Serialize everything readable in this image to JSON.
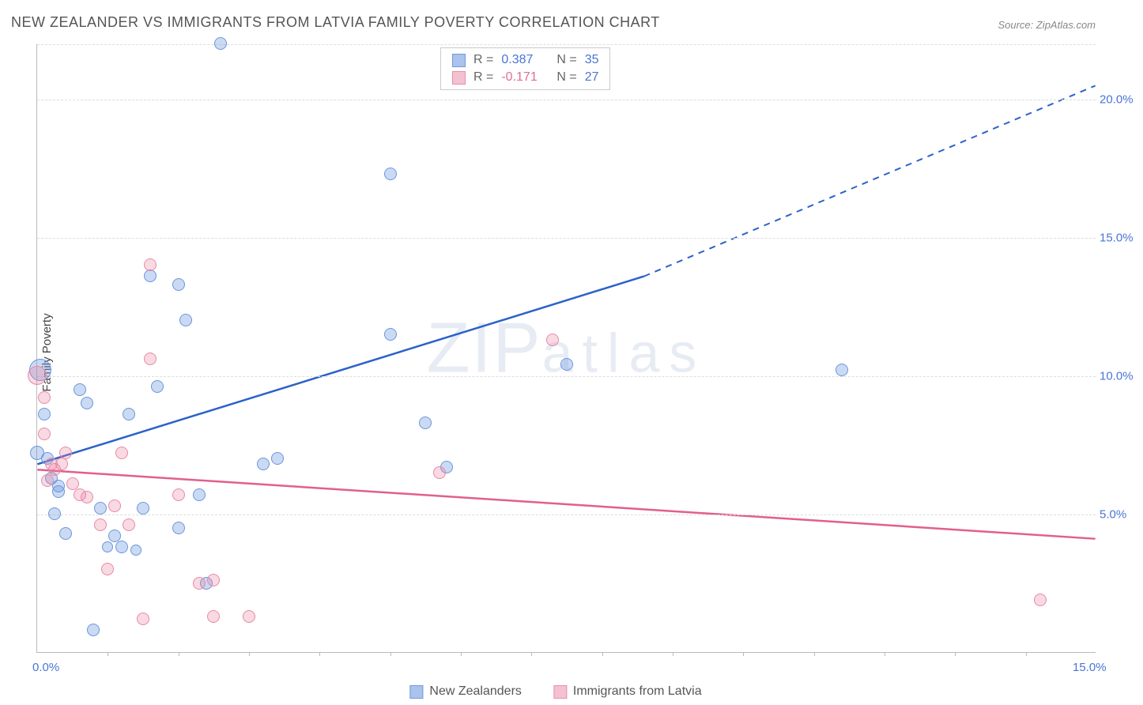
{
  "title": "NEW ZEALANDER VS IMMIGRANTS FROM LATVIA FAMILY POVERTY CORRELATION CHART",
  "source": "Source: ZipAtlas.com",
  "ylabel": "Family Poverty",
  "watermark_zip": "ZIP",
  "watermark_atlas": "atlas",
  "plot": {
    "xlim": [
      0,
      15
    ],
    "ylim": [
      0,
      22
    ],
    "x_ticks": [
      0,
      5,
      15
    ],
    "x_tick_labels": [
      "0.0%",
      "",
      "15.0%"
    ],
    "x_minor_ticks": [
      1,
      2,
      3,
      4,
      5,
      6,
      7,
      8,
      9,
      10,
      11,
      12,
      13,
      14
    ],
    "y_gridlines": [
      5,
      10,
      15,
      20,
      22
    ],
    "y_tick_labels": {
      "5": "5.0%",
      "10": "10.0%",
      "15": "15.0%",
      "20": "20.0%"
    },
    "grid_color": "#dddddd",
    "axis_color": "#bbbbbb",
    "tick_label_color": "#4a74d8"
  },
  "series": [
    {
      "name": "New Zealanders",
      "color_fill": "rgba(105,150,222,0.35)",
      "color_stroke": "#6996de",
      "swatch_fill": "#aac3ec",
      "swatch_border": "#6f99db",
      "R": "0.387",
      "R_color": "#4a74d8",
      "N": "35",
      "trend": {
        "x1": 0,
        "y1": 6.8,
        "x2": 8.6,
        "y2": 13.6,
        "x2_ext": 15,
        "y2_ext": 20.5,
        "color": "#2c62c9",
        "dash_from_x": 8.6
      },
      "points": [
        {
          "x": 0.05,
          "y": 10.2,
          "r": 14
        },
        {
          "x": 0.0,
          "y": 7.2,
          "r": 9
        },
        {
          "x": 0.1,
          "y": 8.6,
          "r": 8
        },
        {
          "x": 0.6,
          "y": 9.5,
          "r": 8
        },
        {
          "x": 0.15,
          "y": 7.0,
          "r": 8
        },
        {
          "x": 0.2,
          "y": 6.3,
          "r": 8
        },
        {
          "x": 0.3,
          "y": 5.8,
          "r": 8
        },
        {
          "x": 0.25,
          "y": 5.0,
          "r": 8
        },
        {
          "x": 0.4,
          "y": 4.3,
          "r": 8
        },
        {
          "x": 0.7,
          "y": 9.0,
          "r": 8
        },
        {
          "x": 0.9,
          "y": 5.2,
          "r": 8
        },
        {
          "x": 1.1,
          "y": 4.2,
          "r": 8
        },
        {
          "x": 1.2,
          "y": 3.8,
          "r": 8
        },
        {
          "x": 1.5,
          "y": 5.2,
          "r": 8
        },
        {
          "x": 1.3,
          "y": 8.6,
          "r": 8
        },
        {
          "x": 1.7,
          "y": 9.6,
          "r": 8
        },
        {
          "x": 1.6,
          "y": 13.6,
          "r": 8
        },
        {
          "x": 2.0,
          "y": 13.3,
          "r": 8
        },
        {
          "x": 2.1,
          "y": 12.0,
          "r": 8
        },
        {
          "x": 2.6,
          "y": 22.0,
          "r": 8
        },
        {
          "x": 1.0,
          "y": 3.8,
          "r": 7
        },
        {
          "x": 1.4,
          "y": 3.7,
          "r": 7
        },
        {
          "x": 2.3,
          "y": 5.7,
          "r": 8
        },
        {
          "x": 2.0,
          "y": 4.5,
          "r": 8
        },
        {
          "x": 2.4,
          "y": 2.5,
          "r": 8
        },
        {
          "x": 3.2,
          "y": 6.8,
          "r": 8
        },
        {
          "x": 3.4,
          "y": 7.0,
          "r": 8
        },
        {
          "x": 5.0,
          "y": 17.3,
          "r": 8
        },
        {
          "x": 5.0,
          "y": 11.5,
          "r": 8
        },
        {
          "x": 5.5,
          "y": 8.3,
          "r": 8
        },
        {
          "x": 5.8,
          "y": 6.7,
          "r": 8
        },
        {
          "x": 7.5,
          "y": 10.4,
          "r": 8
        },
        {
          "x": 0.8,
          "y": 0.8,
          "r": 8
        },
        {
          "x": 0.3,
          "y": 6.0,
          "r": 8
        },
        {
          "x": 11.4,
          "y": 10.2,
          "r": 8
        }
      ]
    },
    {
      "name": "Immigrants from Latvia",
      "color_fill": "rgba(235,130,160,0.30)",
      "color_stroke": "#e78aa8",
      "swatch_fill": "#f4c1d0",
      "swatch_border": "#e88fae",
      "R": "-0.171",
      "R_color": "#df6e95",
      "N": "27",
      "trend": {
        "x1": 0,
        "y1": 6.6,
        "x2": 15,
        "y2": 4.1,
        "color": "#e25f8c"
      },
      "points": [
        {
          "x": 0.0,
          "y": 10.0,
          "r": 12
        },
        {
          "x": 0.1,
          "y": 9.2,
          "r": 8
        },
        {
          "x": 0.1,
          "y": 7.9,
          "r": 8
        },
        {
          "x": 0.2,
          "y": 6.8,
          "r": 8
        },
        {
          "x": 0.25,
          "y": 6.6,
          "r": 8
        },
        {
          "x": 0.35,
          "y": 6.8,
          "r": 8
        },
        {
          "x": 0.5,
          "y": 6.1,
          "r": 8
        },
        {
          "x": 0.6,
          "y": 5.7,
          "r": 8
        },
        {
          "x": 0.7,
          "y": 5.6,
          "r": 8
        },
        {
          "x": 0.9,
          "y": 4.6,
          "r": 8
        },
        {
          "x": 1.0,
          "y": 3.0,
          "r": 8
        },
        {
          "x": 1.1,
          "y": 5.3,
          "r": 8
        },
        {
          "x": 1.3,
          "y": 4.6,
          "r": 8
        },
        {
          "x": 1.6,
          "y": 10.6,
          "r": 8
        },
        {
          "x": 1.6,
          "y": 14.0,
          "r": 8
        },
        {
          "x": 1.5,
          "y": 1.2,
          "r": 8
        },
        {
          "x": 2.0,
          "y": 5.7,
          "r": 8
        },
        {
          "x": 2.3,
          "y": 2.5,
          "r": 8
        },
        {
          "x": 2.5,
          "y": 2.6,
          "r": 8
        },
        {
          "x": 2.5,
          "y": 1.3,
          "r": 8
        },
        {
          "x": 3.0,
          "y": 1.3,
          "r": 8
        },
        {
          "x": 1.2,
          "y": 7.2,
          "r": 8
        },
        {
          "x": 0.4,
          "y": 7.2,
          "r": 8
        },
        {
          "x": 5.7,
          "y": 6.5,
          "r": 8
        },
        {
          "x": 7.3,
          "y": 11.3,
          "r": 8
        },
        {
          "x": 14.2,
          "y": 1.9,
          "r": 8
        },
        {
          "x": 0.15,
          "y": 6.2,
          "r": 8
        }
      ]
    }
  ],
  "legend": {
    "items": [
      {
        "label": "New Zealanders"
      },
      {
        "label": "Immigrants from Latvia"
      }
    ]
  },
  "stats_box": {
    "R_label": "R  =",
    "N_label": "N  ="
  }
}
